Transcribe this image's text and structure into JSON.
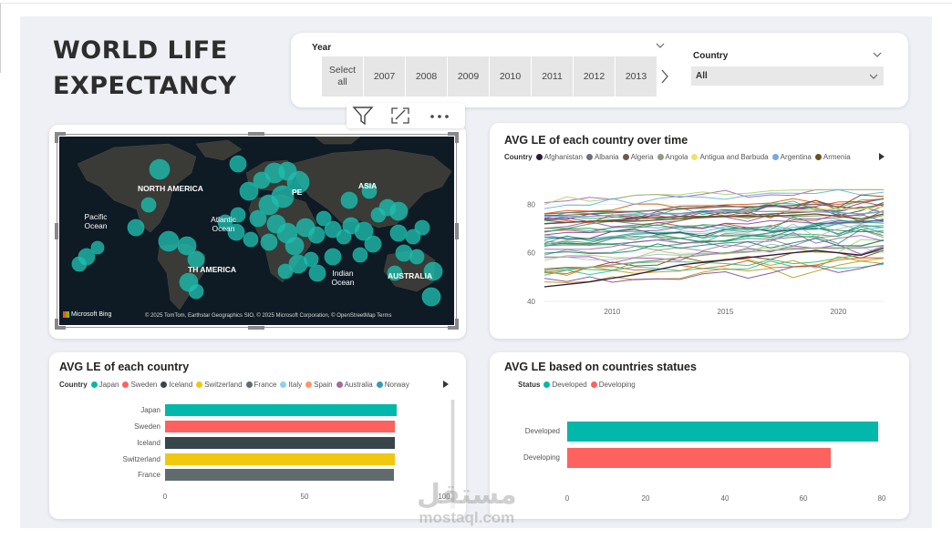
{
  "title": "WORLD LIFE EXPECTANCY",
  "year_slicer": {
    "label": "Year",
    "options": [
      "Select all",
      "2007",
      "2008",
      "2009",
      "2010",
      "2011",
      "2012",
      "2013"
    ]
  },
  "country_slicer": {
    "label": "Country",
    "value": "All"
  },
  "map": {
    "labels": [
      "NORTH AMERICA",
      "PE",
      "ASIA",
      "Pacific Ocean",
      "Atlantic Ocean",
      "TH AMERICA",
      "Indian Ocean",
      "AUSTRALIA"
    ],
    "brand": "Microsoft Bing",
    "attribution": "© 2025 TomTom, Earthstar Geographics SIO, © 2025 Microsoft Corporation, © OpenStreetMap  Terms",
    "bubble_color": "#1fbfb0"
  },
  "line_chart": {
    "title": "AVG LE of each country over time",
    "legend_title": "Country",
    "legend": [
      {
        "name": "Afghanistan",
        "color": "#2b1a3a"
      },
      {
        "name": "Albania",
        "color": "#6e6e78"
      },
      {
        "name": "Algeria",
        "color": "#6d5a4a"
      },
      {
        "name": "Angola",
        "color": "#8e9f7e"
      },
      {
        "name": "Antigua and Barbuda",
        "color": "#f2df6e"
      },
      {
        "name": "Argentina",
        "color": "#7aa7dd"
      },
      {
        "name": "Armenia",
        "color": "#6b5320"
      }
    ],
    "yticks": [
      "80",
      "60",
      "40"
    ],
    "xticks": [
      "2010",
      "2015",
      "2020"
    ]
  },
  "chart_data": [
    {
      "type": "line",
      "title": "AVG LE of each country over time",
      "x": [
        2007,
        2009,
        2011,
        2013,
        2015,
        2017,
        2019,
        2021,
        2022
      ],
      "xlim": [
        2007,
        2022
      ],
      "ylim": [
        40,
        88
      ],
      "series": [
        {
          "name": "Afghanistan",
          "values": [
            46,
            48,
            51,
            55,
            57,
            59,
            61,
            59,
            62
          ]
        },
        {
          "name": "Albania",
          "values": [
            76,
            77,
            77,
            78,
            79,
            79,
            80,
            78,
            80
          ]
        },
        {
          "name": "Algeria",
          "values": [
            72,
            73,
            74,
            75,
            75,
            76,
            77,
            76,
            77
          ]
        },
        {
          "name": "Angola",
          "values": [
            52,
            54,
            56,
            58,
            60,
            61,
            62,
            62,
            63
          ]
        },
        {
          "name": "Antigua and Barbuda",
          "values": [
            75,
            75,
            76,
            76,
            77,
            77,
            78,
            78,
            79
          ]
        },
        {
          "name": "Argentina",
          "values": [
            75,
            75,
            76,
            76,
            77,
            77,
            77,
            76,
            77
          ]
        },
        {
          "name": "Armenia",
          "values": [
            72,
            73,
            73,
            74,
            75,
            75,
            76,
            74,
            76
          ]
        }
      ]
    },
    {
      "type": "bar",
      "title": "AVG LE of each country",
      "legend_title": "Country",
      "legend": [
        {
          "name": "Japan",
          "color": "#01b8aa"
        },
        {
          "name": "Sweden",
          "color": "#fd625e"
        },
        {
          "name": "Iceland",
          "color": "#374649"
        },
        {
          "name": "Switzerland",
          "color": "#f2c80f"
        },
        {
          "name": "France",
          "color": "#5f6b6d"
        },
        {
          "name": "Italy",
          "color": "#8ad4eb"
        },
        {
          "name": "Spain",
          "color": "#fe9666"
        },
        {
          "name": "Australia",
          "color": "#a66999"
        },
        {
          "name": "Norway",
          "color": "#3599b8"
        }
      ],
      "categories": [
        "Japan",
        "Sweden",
        "Iceland",
        "Switzerland",
        "France"
      ],
      "values": [
        83,
        82.5,
        82.5,
        82.5,
        82
      ],
      "xticks": [
        "0",
        "50",
        "100"
      ],
      "xlim": [
        0,
        100
      ]
    },
    {
      "type": "bar",
      "title": "AVG LE based on countries statues",
      "legend_title": "Status",
      "legend": [
        {
          "name": "Developed",
          "color": "#01b8aa"
        },
        {
          "name": "Developing",
          "color": "#fd625e"
        }
      ],
      "categories": [
        "Developed",
        "Developing"
      ],
      "values": [
        79,
        67
      ],
      "xticks": [
        "0",
        "20",
        "40",
        "60",
        "80"
      ],
      "xlim": [
        0,
        80
      ]
    }
  ],
  "watermark": {
    "arabic": "مستقل",
    "latin": "mostaql.com"
  }
}
